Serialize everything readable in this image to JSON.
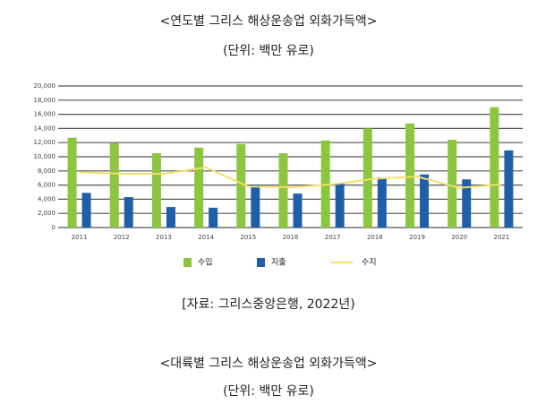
{
  "chart_data": {
    "type": "bar",
    "title": "<연도별 그리스 해상운송업 외화가득액>",
    "subtitle": "(단위: 백만 유로)",
    "categories": [
      "2011",
      "2012",
      "2013",
      "2014",
      "2015",
      "2016",
      "2017",
      "2018",
      "2019",
      "2020",
      "2021"
    ],
    "series": [
      {
        "name": "수입",
        "type": "bar",
        "color": "#8cc63f",
        "values": [
          12700,
          11900,
          10500,
          11300,
          11800,
          10500,
          12300,
          14000,
          14700,
          12400,
          17000
        ]
      },
      {
        "name": "지출",
        "type": "bar",
        "color": "#1f5fa8",
        "values": [
          4900,
          4300,
          2900,
          2800,
          6000,
          4800,
          6200,
          7100,
          7500,
          6800,
          10900
        ]
      },
      {
        "name": "수지",
        "type": "line",
        "color": "#f3e06a",
        "values": [
          7800,
          7600,
          7600,
          8500,
          5800,
          5700,
          6100,
          6900,
          7200,
          5600,
          6100
        ]
      }
    ],
    "ylim": [
      0,
      20000
    ],
    "yticks": [
      0,
      {
        "value": 2000,
        "label": "2,000"
      },
      {
        "value": 4000,
        "label": "4,000"
      },
      {
        "value": 6000,
        "label": "6,000"
      },
      {
        "value": 8000,
        "label": "8,000"
      },
      {
        "value": 10000,
        "label": "10,000"
      },
      {
        "value": 12000,
        "label": "12,000"
      },
      {
        "value": 14000,
        "label": "14,000"
      },
      {
        "value": 16000,
        "label": "16,000"
      },
      {
        "value": 18000,
        "label": "18,000"
      },
      {
        "value": 20000,
        "label": "20,000"
      }
    ],
    "grid": true,
    "legend": "bottom",
    "source": "[자료: 그리스중앙은행, 2022년)"
  },
  "next_section": {
    "title": "<대륙별 그리스 해상운송업 외화가득액>",
    "subtitle": "(단위: 백만 유로)"
  }
}
